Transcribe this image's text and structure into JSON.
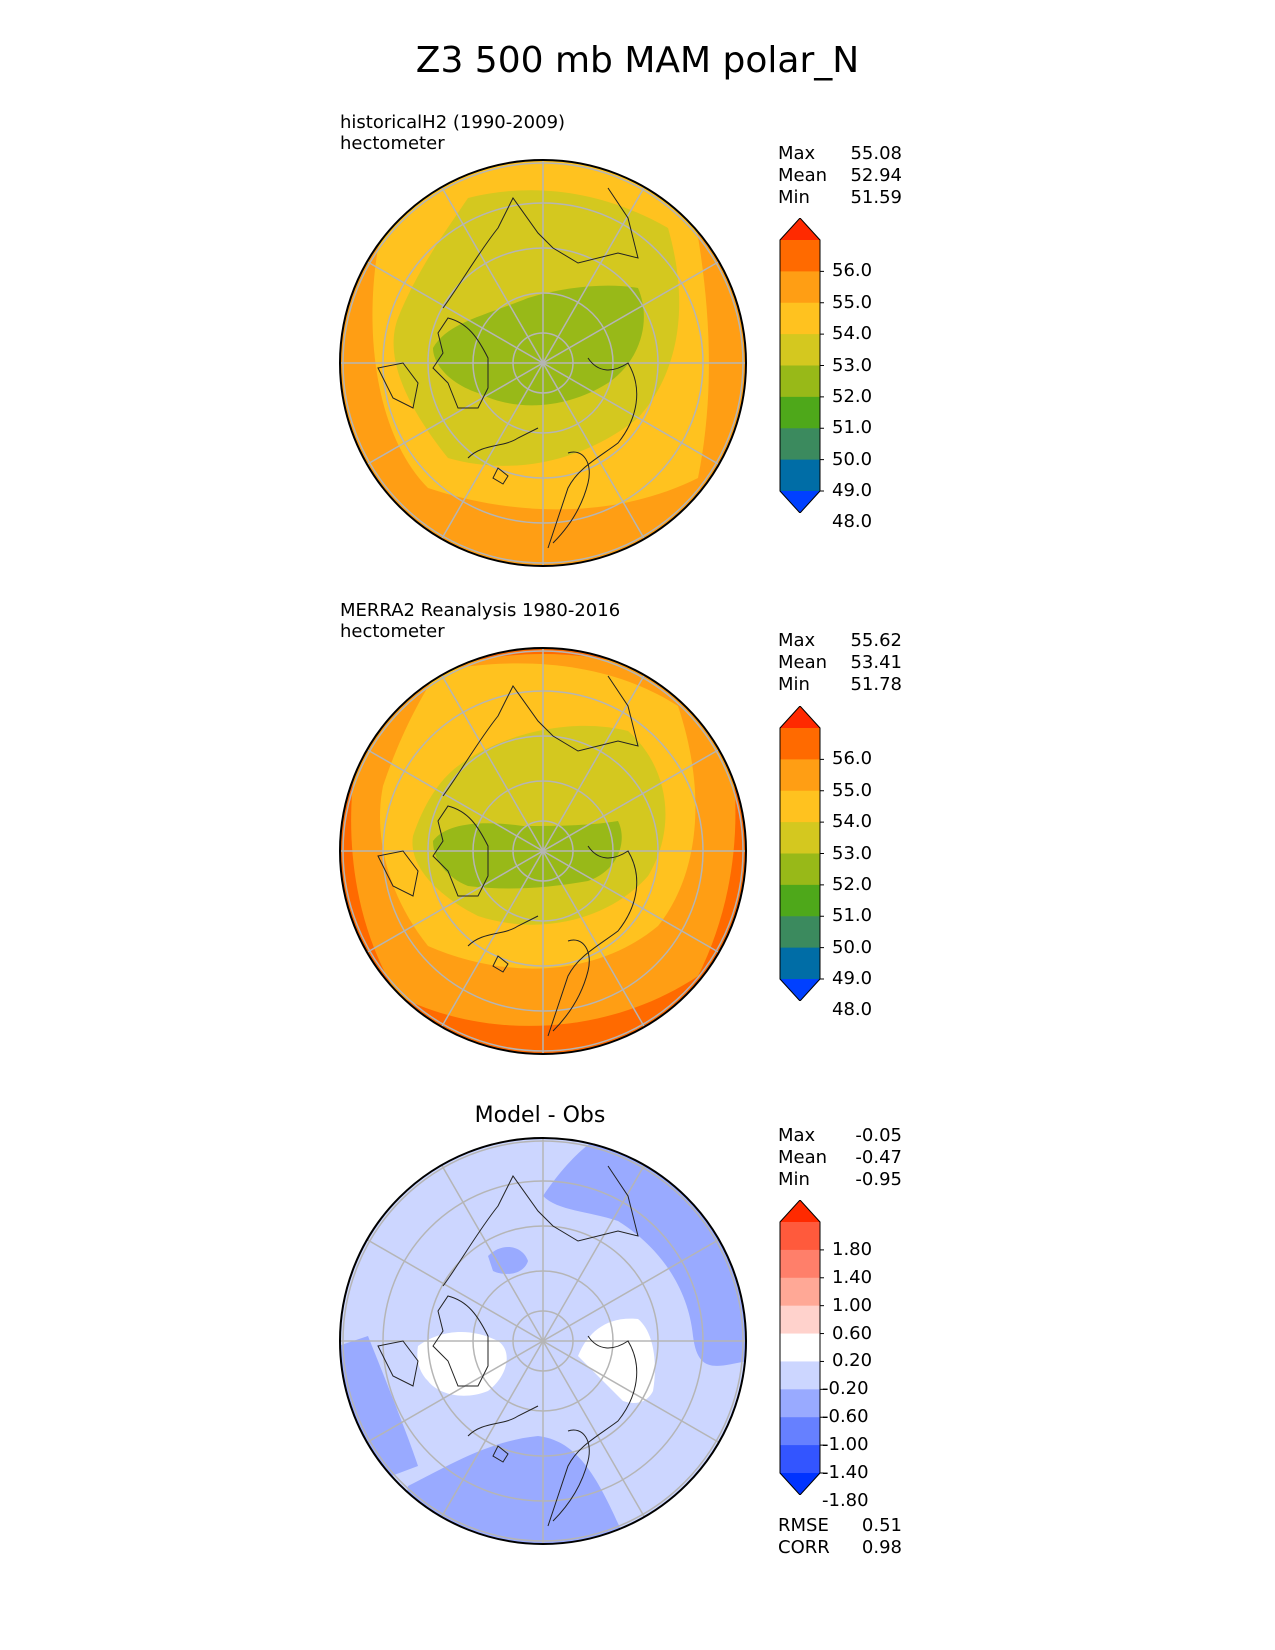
{
  "title": "Z3 500 mb MAM polar_N",
  "panels": [
    {
      "id": "test",
      "title_line1": "historicalH2 (1990-2009)",
      "title_line2": "hectometer",
      "stats": [
        {
          "label": "Max",
          "value": "55.08"
        },
        {
          "label": "Mean",
          "value": "52.94"
        },
        {
          "label": "Min",
          "value": "51.59"
        }
      ],
      "colorbar": {
        "ticks": [
          "56.0",
          "55.0",
          "54.0",
          "53.0",
          "52.0",
          "51.0",
          "50.0",
          "49.0",
          "48.0"
        ],
        "colors": [
          "#ff2a00",
          "#ff6a00",
          "#ff9e14",
          "#ffc21f",
          "#d4c81f",
          "#98b918",
          "#4ea81a",
          "#3b8a5e",
          "#006da6",
          "#0040ff"
        ]
      },
      "map_colors": {
        "ring0": "#ff9e14",
        "ring1": "#ffc21f",
        "ring2": "#d4c81f",
        "core": "#98b918"
      }
    },
    {
      "id": "ref",
      "title_line1": "MERRA2 Reanalysis 1980-2016",
      "title_line2": "hectometer",
      "stats": [
        {
          "label": "Max",
          "value": "55.62"
        },
        {
          "label": "Mean",
          "value": "53.41"
        },
        {
          "label": "Min",
          "value": "51.78"
        }
      ],
      "colorbar": {
        "ticks": [
          "56.0",
          "55.0",
          "54.0",
          "53.0",
          "52.0",
          "51.0",
          "50.0",
          "49.0",
          "48.0"
        ],
        "colors": [
          "#ff2a00",
          "#ff6a00",
          "#ff9e14",
          "#ffc21f",
          "#d4c81f",
          "#98b918",
          "#4ea81a",
          "#3b8a5e",
          "#006da6",
          "#0040ff"
        ]
      },
      "map_colors": {
        "ring0": "#ff6a00",
        "ring1": "#ff9e14",
        "ring2": "#ffc21f",
        "ring3": "#d4c81f",
        "core": "#98b918"
      }
    },
    {
      "id": "diff",
      "title": "Model - Obs",
      "stats": [
        {
          "label": "Max",
          "value": "-0.05"
        },
        {
          "label": "Mean",
          "value": "-0.47"
        },
        {
          "label": "Min",
          "value": "-0.95"
        }
      ],
      "colorbar": {
        "ticks": [
          "1.80",
          "1.40",
          "1.00",
          "0.60",
          "0.20",
          "-0.20",
          "-0.60",
          "-1.00",
          "-1.40",
          "-1.80"
        ],
        "colors": [
          "#ff2a00",
          "#ff5a3c",
          "#ff7f6a",
          "#ffa896",
          "#ffd2cc",
          "#ffffff",
          "#ccd6ff",
          "#99aaff",
          "#6680ff",
          "#3355ff",
          "#0033ff"
        ]
      },
      "extra_stats": [
        {
          "label": "RMSE",
          "value": "0.51"
        },
        {
          "label": "CORR",
          "value": "0.98"
        }
      ],
      "map_colors": {
        "base": "#ccd6ff",
        "darker": "#99aaff",
        "white": "#ffffff"
      }
    }
  ],
  "chart_data": [
    {
      "type": "heatmap",
      "title": "historicalH2 (1990-2009)",
      "units": "hectometer",
      "projection": "polar_N",
      "levels": [
        48.0,
        49.0,
        50.0,
        51.0,
        52.0,
        53.0,
        54.0,
        55.0,
        56.0
      ],
      "max": 55.08,
      "mean": 52.94,
      "min": 51.59
    },
    {
      "type": "heatmap",
      "title": "MERRA2 Reanalysis 1980-2016",
      "units": "hectometer",
      "projection": "polar_N",
      "levels": [
        48.0,
        49.0,
        50.0,
        51.0,
        52.0,
        53.0,
        54.0,
        55.0,
        56.0
      ],
      "max": 55.62,
      "mean": 53.41,
      "min": 51.78
    },
    {
      "type": "heatmap",
      "title": "Model - Obs",
      "projection": "polar_N",
      "levels": [
        -1.8,
        -1.4,
        -1.0,
        -0.6,
        -0.2,
        0.2,
        0.6,
        1.0,
        1.4,
        1.8
      ],
      "max": -0.05,
      "mean": -0.47,
      "min": -0.95,
      "rmse": 0.51,
      "corr": 0.98
    }
  ]
}
